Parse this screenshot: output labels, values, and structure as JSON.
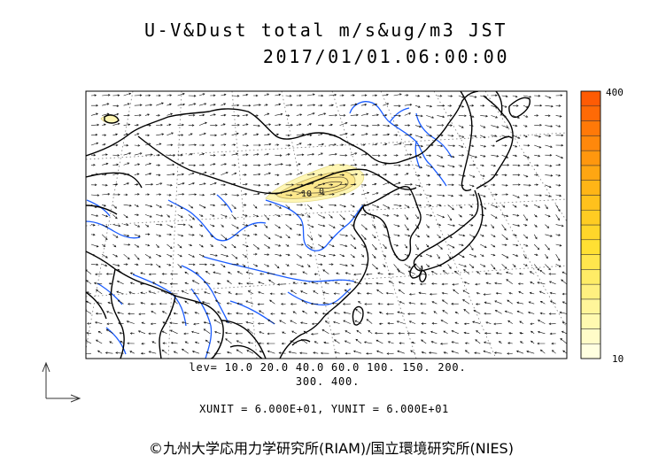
{
  "title": {
    "line1": "U-V&Dust total m/s&ug/m3 JST",
    "line2": "2017/01/01.06:00:00"
  },
  "levels_text": {
    "line1": "lev= 10.0 20.0 40.0 60.0 100. 150. 200.",
    "line2": "300. 400."
  },
  "units_text": "XUNIT = 6.000E+01, YUNIT = 6.000E+01",
  "copyright": "©九州大学応用力学研究所(RIAM)/国立環境研究所(NIES)",
  "colorbar": {
    "max_label": "400",
    "min_label": "10",
    "colors": [
      "#ffffe0",
      "#fffcc8",
      "#fff9b0",
      "#fff59a",
      "#fff080",
      "#ffec66",
      "#ffe64d",
      "#ffe033",
      "#ffd62a",
      "#ffcc22",
      "#ffc11c",
      "#ffb516",
      "#ffa612",
      "#ff970e",
      "#ff880b",
      "#ff7908",
      "#ff6a06",
      "#ff5b04"
    ]
  },
  "contour_labels": [
    "10",
    "0"
  ],
  "colors": {
    "coast": "#000000",
    "river": "#1a5cff",
    "dust": "#fff3a0",
    "dust_core": "#fde47a"
  }
}
